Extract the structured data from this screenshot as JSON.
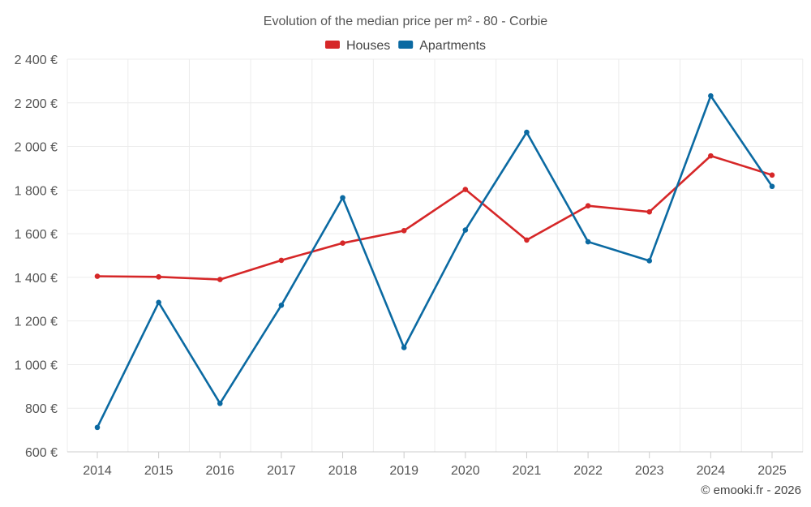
{
  "chart_data": {
    "type": "line",
    "title": "Evolution of the median price per m² - 80 - Corbie",
    "categories": [
      "2014",
      "2015",
      "2016",
      "2017",
      "2018",
      "2019",
      "2020",
      "2021",
      "2022",
      "2023",
      "2024",
      "2025"
    ],
    "series": [
      {
        "name": "Houses",
        "color": "#d62728",
        "values": [
          1405,
          1402,
          1390,
          1478,
          1557,
          1614,
          1803,
          1571,
          1728,
          1700,
          1957,
          1869
        ]
      },
      {
        "name": "Apartments",
        "color": "#0b6aa2",
        "values": [
          712,
          1285,
          822,
          1272,
          1765,
          1078,
          1617,
          2065,
          1563,
          1476,
          2232,
          1817
        ]
      }
    ],
    "ylim": [
      600,
      2400
    ],
    "yticks": [
      600,
      800,
      1000,
      1200,
      1400,
      1600,
      1800,
      2000,
      2200,
      2400
    ],
    "ytick_labels": [
      "600 €",
      "800 €",
      "1 000 €",
      "1 200 €",
      "1 400 €",
      "1 600 €",
      "1 800 €",
      "2 000 €",
      "2 200 €",
      "2 400 €"
    ],
    "xlabel": "",
    "ylabel": "",
    "legend_position": "top-center",
    "grid": true
  },
  "credit": "© emooki.fr - 2026"
}
